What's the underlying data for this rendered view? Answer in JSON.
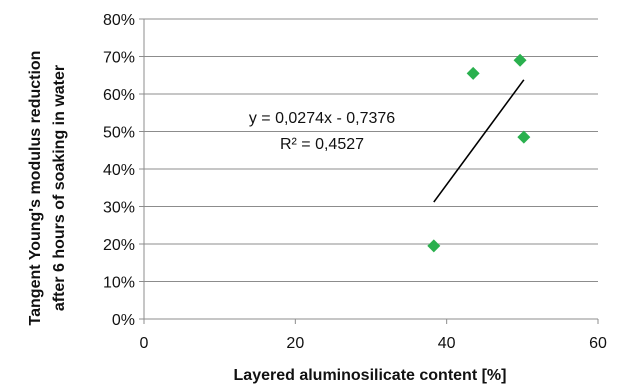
{
  "chart_data": {
    "type": "scatter",
    "xlabel": "Layered aluminosilicate content [%]",
    "ylabel_lines": [
      "Tangent Young's modulus reduction",
      "after 6 hours of soaking in water"
    ],
    "xlim": [
      0,
      60
    ],
    "ylim": [
      0,
      0.8
    ],
    "x_ticks": [
      0,
      20,
      40,
      60
    ],
    "x_tick_labels": [
      "0",
      "20",
      "40",
      "60"
    ],
    "y_ticks": [
      0,
      0.1,
      0.2,
      0.3,
      0.4,
      0.5,
      0.6,
      0.7,
      0.8
    ],
    "y_tick_labels": [
      "0%",
      "10%",
      "20%",
      "30%",
      "40%",
      "50%",
      "60%",
      "70%",
      "80%"
    ],
    "grid": "horizontal",
    "marker": "diamond",
    "marker_color": "#2ab04e",
    "points": [
      {
        "x": 38.3,
        "y": 0.195
      },
      {
        "x": 43.5,
        "y": 0.655
      },
      {
        "x": 49.7,
        "y": 0.69
      },
      {
        "x": 50.2,
        "y": 0.485
      }
    ],
    "trendline": {
      "slope": 0.0274,
      "intercept": -0.7376,
      "x_range": [
        38.3,
        50.2
      ],
      "color": "#000000",
      "equation": "y = 0,0274x - 0,7376",
      "r_squared": "R² = 0,4527"
    }
  }
}
